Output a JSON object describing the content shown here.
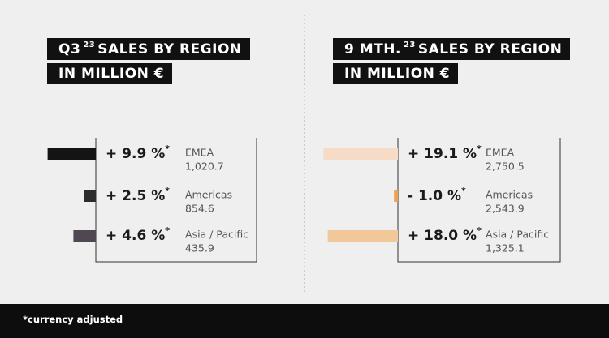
{
  "chart_data": [
    {
      "type": "bar",
      "orientation": "horizontal",
      "title_prefix": "Q3",
      "title_sup": "23",
      "title_rest": "SALES BY REGION",
      "subtitle": "IN MILLION €",
      "categories": [
        "EMEA",
        "Americas",
        "Asia / Pacific"
      ],
      "values": [
        9.9,
        2.5,
        4.6
      ],
      "value_labels": [
        "+ 9.9 %",
        "+ 2.5 %",
        "+ 4.6 %"
      ],
      "label_mark": "*",
      "colors": [
        "#141414",
        "#2c2c2e",
        "#4f4752"
      ],
      "sales": [
        {
          "value": 1020.7,
          "label": "1,020.7"
        },
        {
          "value": 854.6,
          "label": "854.6"
        },
        {
          "value": 435.9,
          "label": "435.9"
        }
      ],
      "xlim": [
        0,
        10
      ]
    },
    {
      "type": "bar",
      "orientation": "horizontal",
      "title_prefix": "9 MTH.",
      "title_sup": "23",
      "title_rest": "SALES BY REGION",
      "subtitle": "IN MILLION €",
      "categories": [
        "EMEA",
        "Americas",
        "Asia / Pacific"
      ],
      "values": [
        19.1,
        -1.0,
        18.0
      ],
      "value_labels": [
        "+ 19.1 %",
        "- 1.0 %",
        "+ 18.0 %"
      ],
      "label_mark": "*",
      "colors": [
        "#f6dcc6",
        "#e9a352",
        "#f2c89a"
      ],
      "sales": [
        {
          "value": 2750.5,
          "label": "2,750.5"
        },
        {
          "value": 2543.9,
          "label": "2,543.9"
        },
        {
          "value": 1325.1,
          "label": "1,325.1"
        }
      ],
      "xlim": [
        0,
        20
      ]
    }
  ],
  "footnote": "*currency adjusted"
}
